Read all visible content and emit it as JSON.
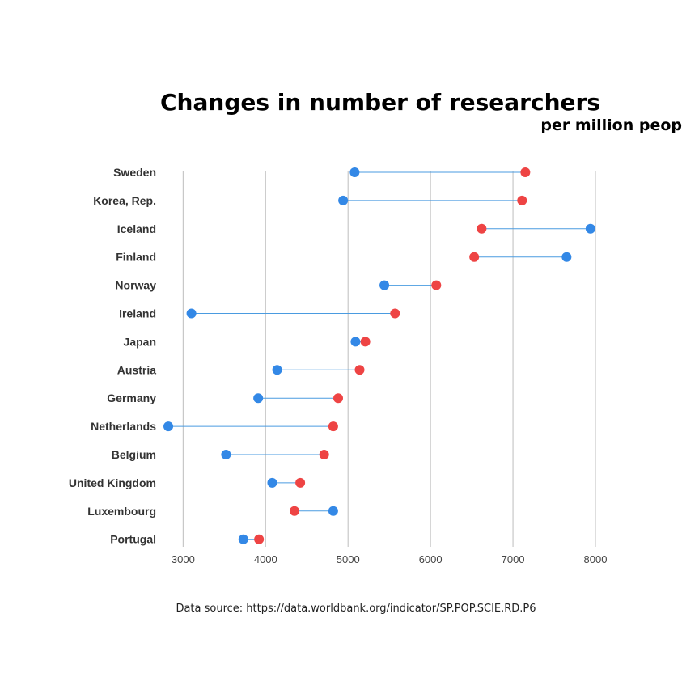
{
  "chart_data": {
    "type": "dumbbell",
    "title": "Changes in number of researchers",
    "subtitle": "per million peop",
    "source": "Data source:  https://data.worldbank.org/indicator/SP.POP.SCIE.RD.P6",
    "xlim": [
      2800,
      8000
    ],
    "x_ticks": [
      3000,
      4000,
      5000,
      6000,
      7000,
      8000
    ],
    "grid": "vertical",
    "categories": [
      "Sweden",
      "Korea, Rep.",
      "Iceland",
      "Finland",
      "Norway",
      "Ireland",
      "Japan",
      "Austria",
      "Germany",
      "Netherlands",
      "Belgium",
      "United Kingdom",
      "Luxembourg",
      "Portugal"
    ],
    "series": [
      {
        "values": [
          5080,
          4940,
          7940,
          7650,
          5440,
          3100,
          5090,
          4140,
          3910,
          2820,
          3520,
          4080,
          4820,
          3730
        ]
      },
      {
        "values": [
          7150,
          7110,
          6620,
          6530,
          6070,
          5570,
          5210,
          5140,
          4880,
          4820,
          4710,
          4420,
          4350,
          3920
        ]
      }
    ],
    "colors": {
      "start": "#3388e6",
      "end": "#ee4444",
      "connector": "#4a9be0",
      "grid": "#c8c8c8"
    }
  }
}
